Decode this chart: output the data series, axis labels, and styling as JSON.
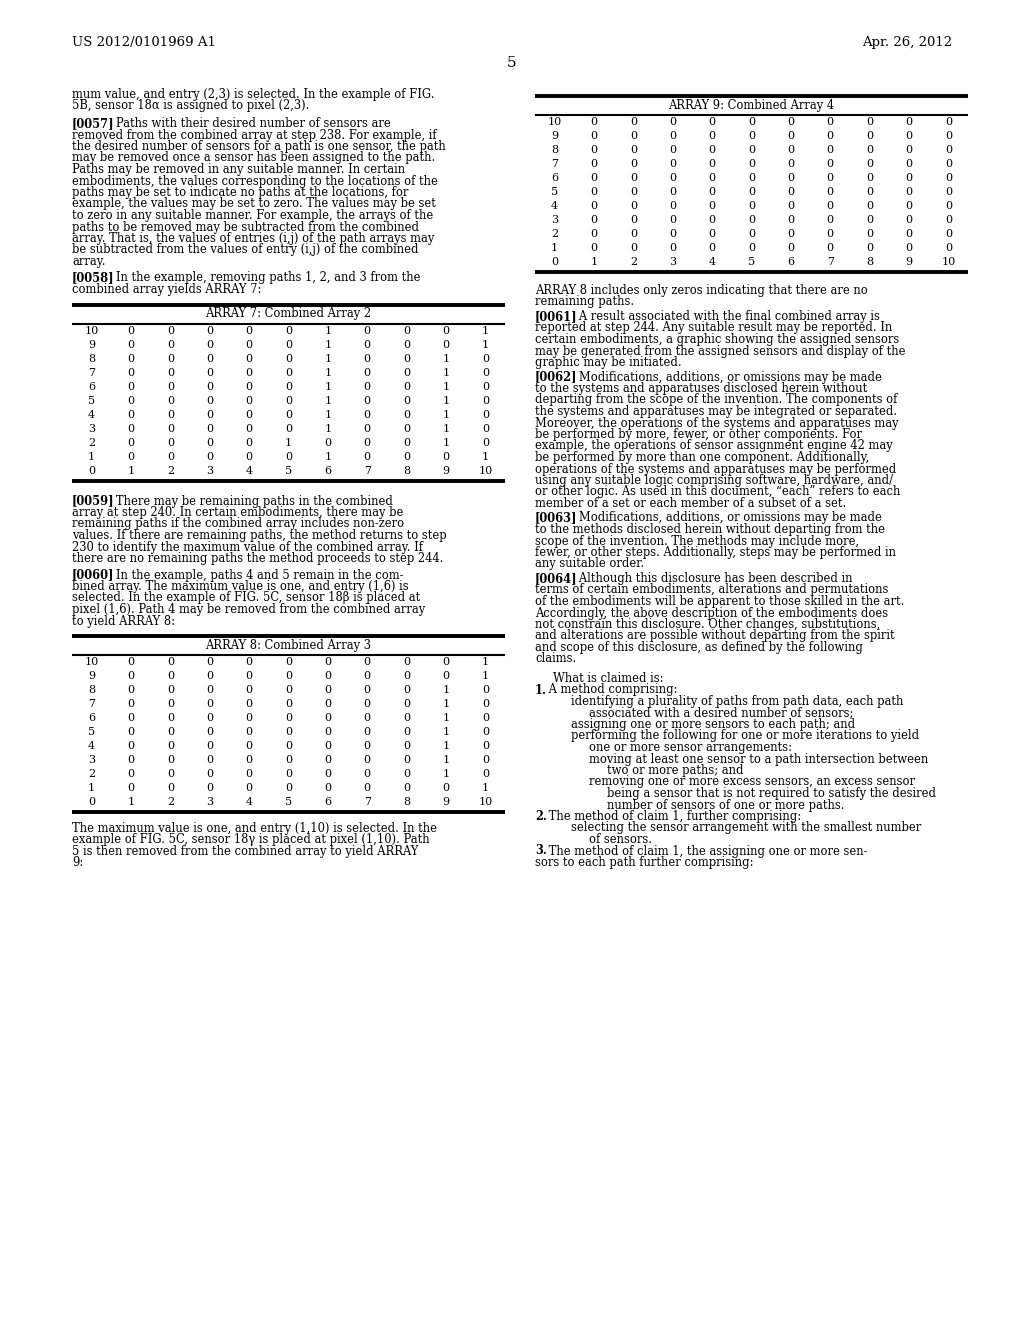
{
  "header_left": "US 2012/0101969 A1",
  "header_right": "Apr. 26, 2012",
  "page_number": "5",
  "array7_title": "ARRAY 7: Combined Array 2",
  "array7_data": [
    [
      10,
      0,
      0,
      0,
      0,
      0,
      1,
      0,
      0,
      0,
      1
    ],
    [
      9,
      0,
      0,
      0,
      0,
      0,
      1,
      0,
      0,
      0,
      1
    ],
    [
      8,
      0,
      0,
      0,
      0,
      0,
      1,
      0,
      0,
      1,
      0
    ],
    [
      7,
      0,
      0,
      0,
      0,
      0,
      1,
      0,
      0,
      1,
      0
    ],
    [
      6,
      0,
      0,
      0,
      0,
      0,
      1,
      0,
      0,
      1,
      0
    ],
    [
      5,
      0,
      0,
      0,
      0,
      0,
      1,
      0,
      0,
      1,
      0
    ],
    [
      4,
      0,
      0,
      0,
      0,
      0,
      1,
      0,
      0,
      1,
      0
    ],
    [
      3,
      0,
      0,
      0,
      0,
      0,
      1,
      0,
      0,
      1,
      0
    ],
    [
      2,
      0,
      0,
      0,
      0,
      1,
      0,
      0,
      0,
      1,
      0
    ],
    [
      1,
      0,
      0,
      0,
      0,
      0,
      1,
      0,
      0,
      0,
      1
    ],
    [
      0,
      1,
      2,
      3,
      4,
      5,
      6,
      7,
      8,
      9,
      10
    ]
  ],
  "array8_title": "ARRAY 8: Combined Array 3",
  "array8_data": [
    [
      10,
      0,
      0,
      0,
      0,
      0,
      0,
      0,
      0,
      0,
      1
    ],
    [
      9,
      0,
      0,
      0,
      0,
      0,
      0,
      0,
      0,
      0,
      1
    ],
    [
      8,
      0,
      0,
      0,
      0,
      0,
      0,
      0,
      0,
      1,
      0
    ],
    [
      7,
      0,
      0,
      0,
      0,
      0,
      0,
      0,
      0,
      1,
      0
    ],
    [
      6,
      0,
      0,
      0,
      0,
      0,
      0,
      0,
      0,
      1,
      0
    ],
    [
      5,
      0,
      0,
      0,
      0,
      0,
      0,
      0,
      0,
      1,
      0
    ],
    [
      4,
      0,
      0,
      0,
      0,
      0,
      0,
      0,
      0,
      1,
      0
    ],
    [
      3,
      0,
      0,
      0,
      0,
      0,
      0,
      0,
      0,
      1,
      0
    ],
    [
      2,
      0,
      0,
      0,
      0,
      0,
      0,
      0,
      0,
      1,
      0
    ],
    [
      1,
      0,
      0,
      0,
      0,
      0,
      0,
      0,
      0,
      0,
      1
    ],
    [
      0,
      1,
      2,
      3,
      4,
      5,
      6,
      7,
      8,
      9,
      10
    ]
  ],
  "array9_title": "ARRAY 9: Combined Array 4",
  "array9_data": [
    [
      10,
      0,
      0,
      0,
      0,
      0,
      0,
      0,
      0,
      0,
      0
    ],
    [
      9,
      0,
      0,
      0,
      0,
      0,
      0,
      0,
      0,
      0,
      0
    ],
    [
      8,
      0,
      0,
      0,
      0,
      0,
      0,
      0,
      0,
      0,
      0
    ],
    [
      7,
      0,
      0,
      0,
      0,
      0,
      0,
      0,
      0,
      0,
      0
    ],
    [
      6,
      0,
      0,
      0,
      0,
      0,
      0,
      0,
      0,
      0,
      0
    ],
    [
      5,
      0,
      0,
      0,
      0,
      0,
      0,
      0,
      0,
      0,
      0
    ],
    [
      4,
      0,
      0,
      0,
      0,
      0,
      0,
      0,
      0,
      0,
      0
    ],
    [
      3,
      0,
      0,
      0,
      0,
      0,
      0,
      0,
      0,
      0,
      0
    ],
    [
      2,
      0,
      0,
      0,
      0,
      0,
      0,
      0,
      0,
      0,
      0
    ],
    [
      1,
      0,
      0,
      0,
      0,
      0,
      0,
      0,
      0,
      0,
      0
    ],
    [
      0,
      1,
      2,
      3,
      4,
      5,
      6,
      7,
      8,
      9,
      10
    ]
  ]
}
